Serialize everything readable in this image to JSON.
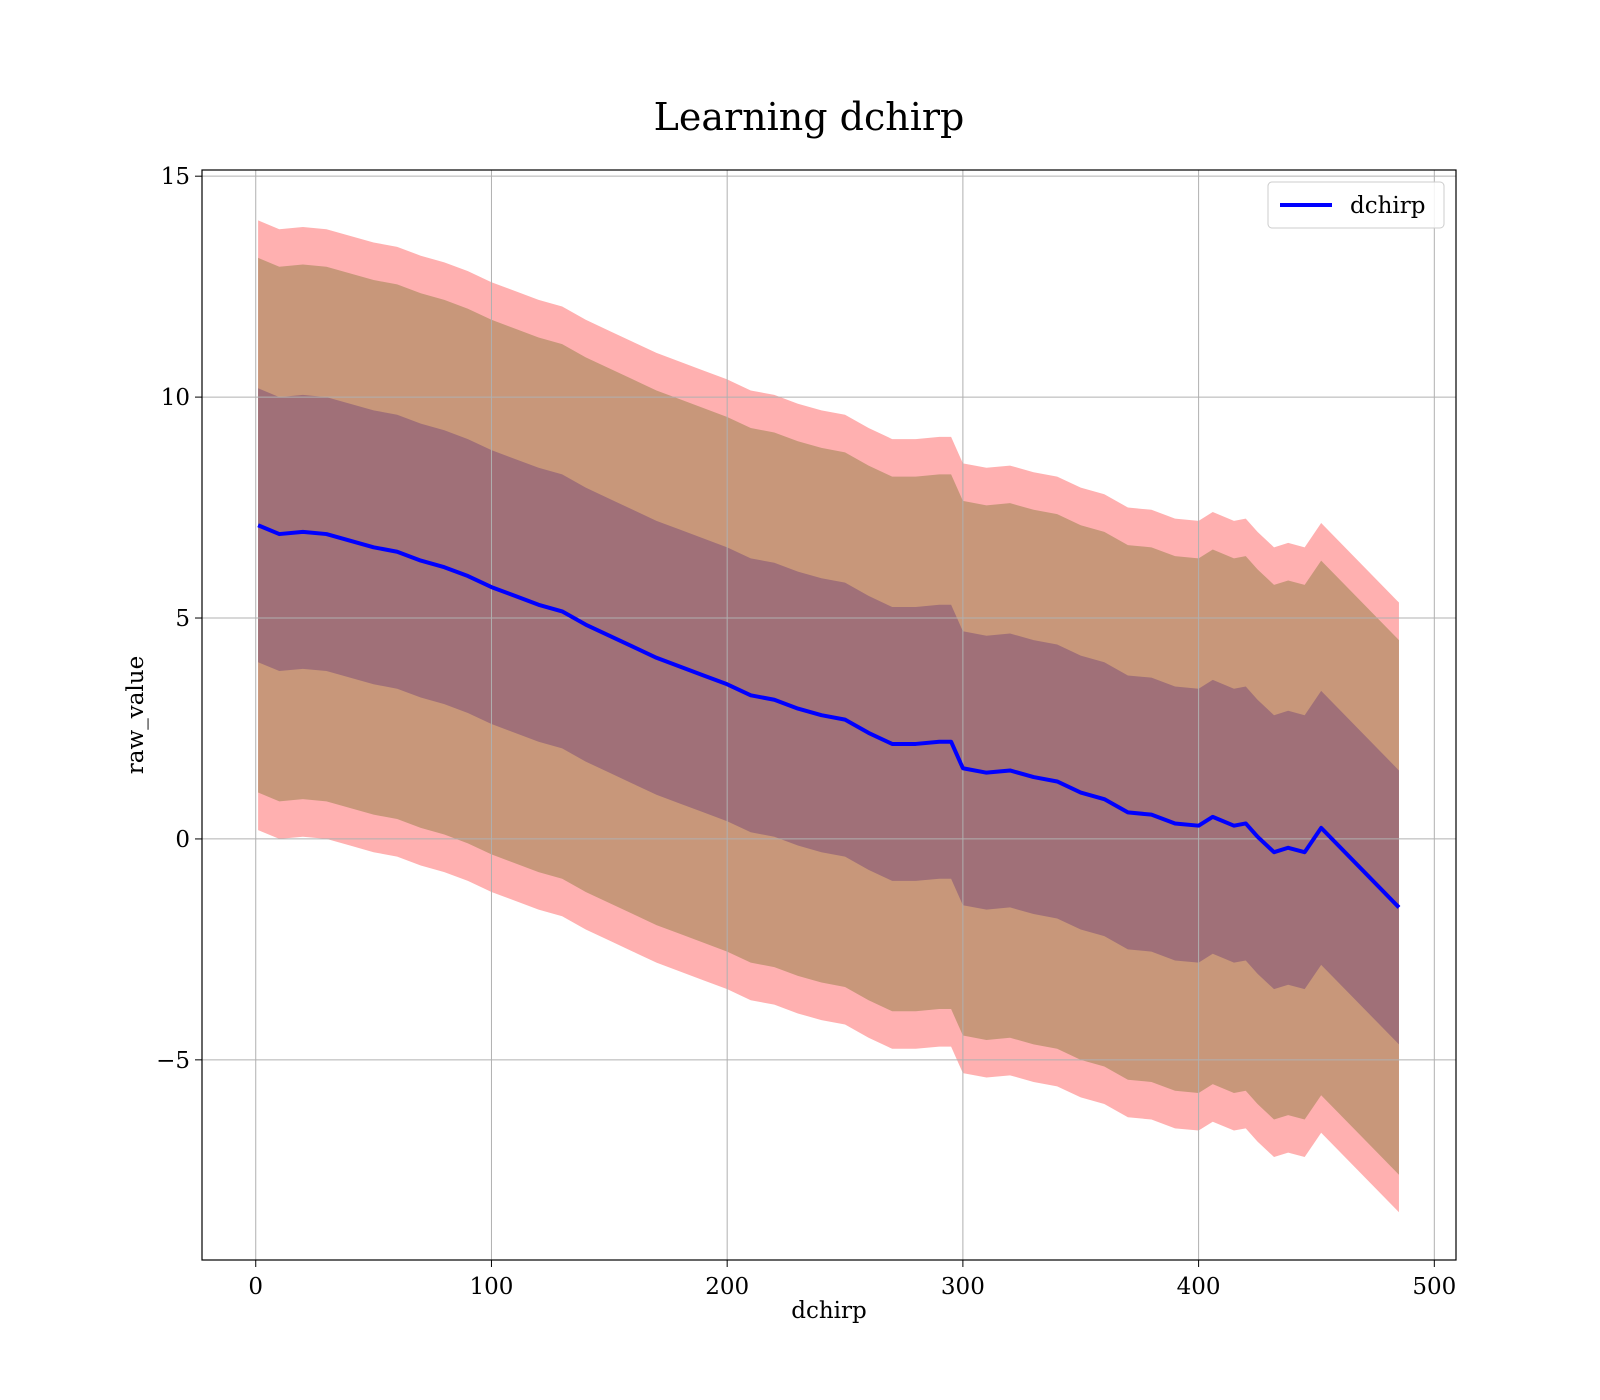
{
  "chart_data": {
    "type": "line",
    "title": "Learning dchirp",
    "x_label": "dchirp",
    "y_label": "raw_value",
    "x": [
      1,
      10,
      20,
      30,
      40,
      50,
      60,
      70,
      80,
      90,
      100,
      110,
      120,
      130,
      140,
      150,
      160,
      170,
      180,
      190,
      200,
      210,
      220,
      230,
      240,
      250,
      260,
      270,
      280,
      290,
      295,
      300,
      310,
      320,
      330,
      340,
      350,
      360,
      370,
      380,
      390,
      400,
      406,
      415,
      420,
      425,
      432,
      438,
      445,
      452,
      485
    ],
    "series": [
      {
        "name": "dchirp",
        "color": "#0000ff",
        "values": [
          7.1,
          6.9,
          6.95,
          6.9,
          6.75,
          6.6,
          6.5,
          6.3,
          6.15,
          5.95,
          5.7,
          5.5,
          5.3,
          5.15,
          4.85,
          4.6,
          4.35,
          4.1,
          3.9,
          3.7,
          3.5,
          3.25,
          3.15,
          2.95,
          2.8,
          2.7,
          2.4,
          2.15,
          2.15,
          2.2,
          2.2,
          1.6,
          1.5,
          1.55,
          1.4,
          1.3,
          1.05,
          0.9,
          0.6,
          0.55,
          0.35,
          0.3,
          0.5,
          0.3,
          0.35,
          0.05,
          -0.3,
          -0.2,
          -0.3,
          0.25,
          -1.55
        ]
      }
    ],
    "bands": [
      {
        "color": "#ffb0b0",
        "halfwidth": 6.9
      },
      {
        "color": "#c8977a",
        "halfwidth": 6.05
      },
      {
        "color": "#a07078",
        "halfwidth": 3.1
      }
    ],
    "xlim": [
      -22.8,
      509.2
    ],
    "ylim": [
      -9.53,
      15.14
    ],
    "xticks": [
      0,
      100,
      200,
      300,
      400,
      500
    ],
    "yticks": [
      {
        "value": -5,
        "label": "−5"
      },
      0,
      5,
      10,
      15
    ],
    "grid": true,
    "legend": "upper right"
  }
}
